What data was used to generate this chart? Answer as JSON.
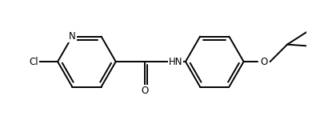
{
  "background_color": "#ffffff",
  "line_color": "#000000",
  "line_width": 1.4,
  "figsize": [
    4.15,
    1.5
  ],
  "dpi": 100,
  "xlim": [
    0.0,
    8.5
  ],
  "ylim": [
    -1.8,
    1.8
  ]
}
